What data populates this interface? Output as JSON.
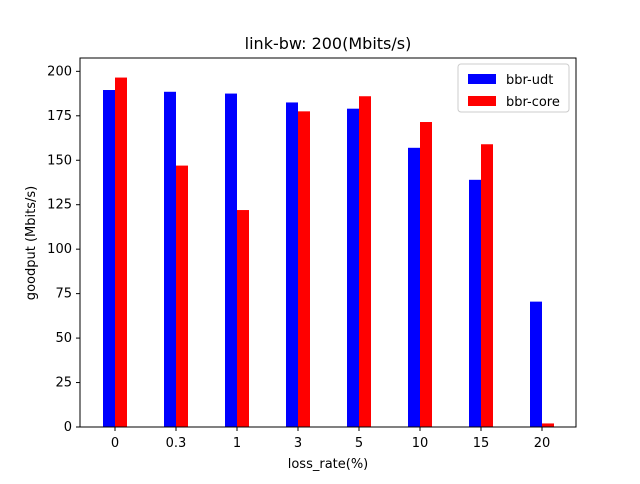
{
  "chart_data": {
    "type": "bar",
    "title": "link-bw: 200(Mbits/s)",
    "xlabel": "loss_rate(%)",
    "ylabel": "goodput (Mbits/s)",
    "categories": [
      "0",
      "0.3",
      "1",
      "3",
      "5",
      "10",
      "15",
      "20"
    ],
    "series": [
      {
        "name": "bbr-udt",
        "color": "#0000ff",
        "values": [
          189.5,
          188.5,
          187.5,
          182.5,
          179,
          157,
          139,
          70.5
        ]
      },
      {
        "name": "bbr-core",
        "color": "#ff0000",
        "values": [
          196.5,
          147,
          122,
          177.5,
          186,
          171.5,
          159,
          2
        ]
      }
    ],
    "ylim": [
      0,
      207.5
    ],
    "yticks": [
      0,
      25,
      50,
      75,
      100,
      125,
      150,
      175,
      200
    ],
    "legend_position": "top-right",
    "grid": false
  }
}
